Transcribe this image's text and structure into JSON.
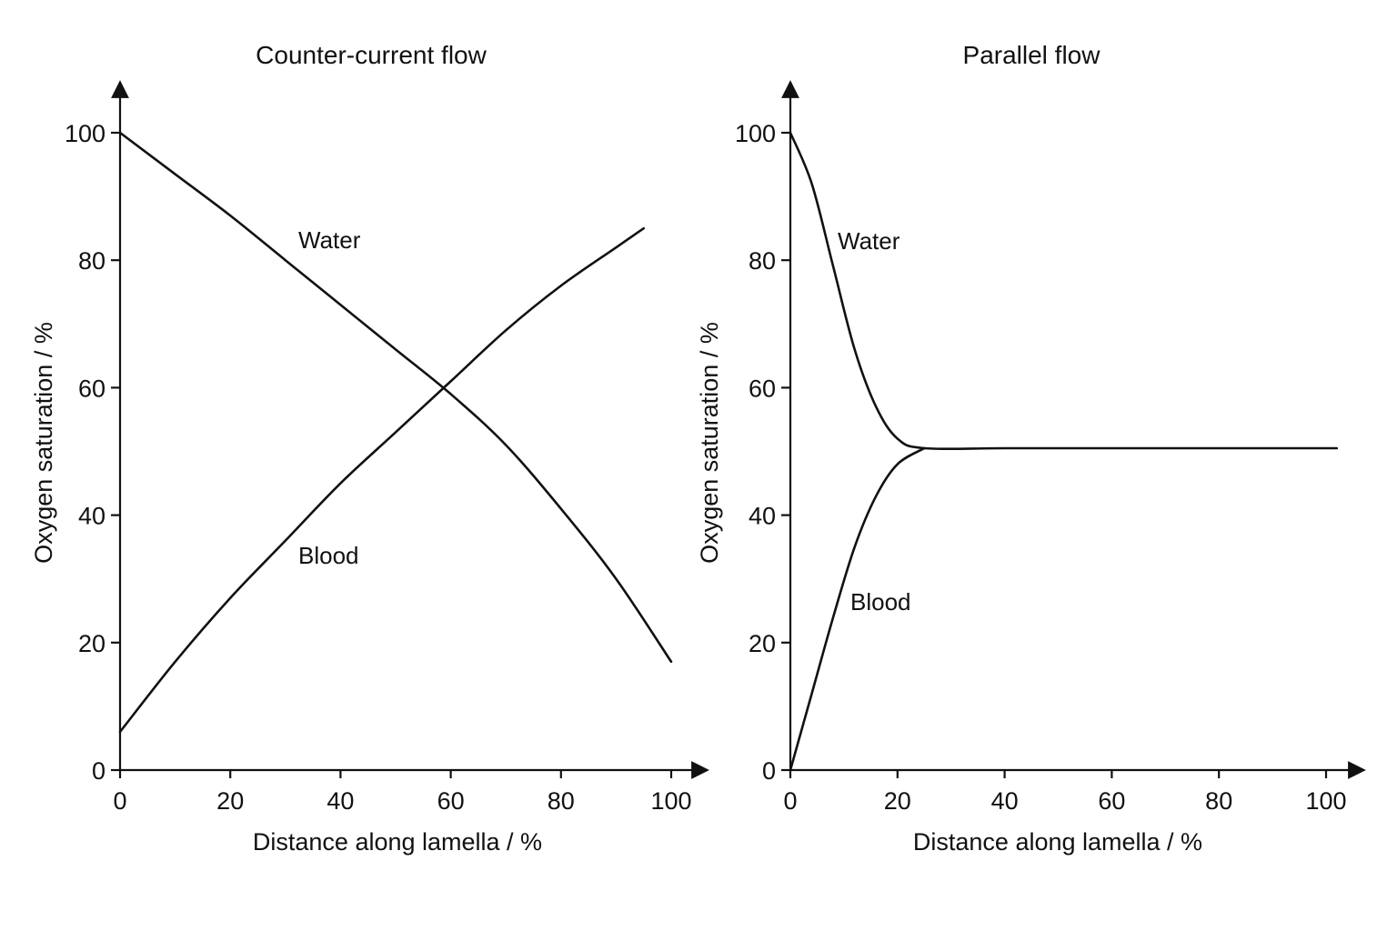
{
  "chart_data": [
    {
      "type": "line",
      "title": "Counter-current flow",
      "xlabel": "Distance along lamella / %",
      "ylabel": "Oxygen saturation / %",
      "xlim": [
        0,
        100
      ],
      "ylim": [
        0,
        100
      ],
      "xticks": [
        "0",
        "20",
        "40",
        "60",
        "80",
        "100"
      ],
      "yticks": [
        "0",
        "20",
        "40",
        "60",
        "80",
        "100"
      ],
      "grid": false,
      "legend": "none",
      "series": [
        {
          "name": "Water",
          "x": [
            0,
            10,
            20,
            30,
            40,
            50,
            60,
            70,
            80,
            90,
            100
          ],
          "y": [
            100,
            93.5,
            87,
            80,
            73,
            66,
            59,
            51,
            41,
            30,
            17
          ]
        },
        {
          "name": "Blood",
          "x": [
            0,
            10,
            20,
            30,
            40,
            50,
            60,
            70,
            80,
            90,
            95
          ],
          "y": [
            6,
            17,
            27,
            36,
            45,
            53,
            61,
            69,
            76,
            82,
            85
          ]
        }
      ]
    },
    {
      "type": "line",
      "title": "Parallel flow",
      "xlabel": "Distance along lamella / %",
      "ylabel": "Oxygen saturation / %",
      "xlim": [
        0,
        100
      ],
      "ylim": [
        0,
        100
      ],
      "xticks": [
        "0",
        "20",
        "40",
        "60",
        "80",
        "100"
      ],
      "yticks": [
        "0",
        "20",
        "40",
        "60",
        "80",
        "100"
      ],
      "grid": false,
      "legend": "none",
      "series": [
        {
          "name": "Water",
          "x": [
            0,
            4,
            8,
            12,
            16,
            20,
            25,
            40,
            60,
            80,
            102
          ],
          "y": [
            100,
            92,
            79,
            66,
            57,
            52,
            50.5,
            50.5,
            50.5,
            50.5,
            50.5
          ]
        },
        {
          "name": "Blood",
          "x": [
            0,
            4,
            8,
            12,
            16,
            20,
            25
          ],
          "y": [
            0,
            12,
            24,
            35,
            43,
            48,
            50.5
          ]
        }
      ]
    }
  ]
}
